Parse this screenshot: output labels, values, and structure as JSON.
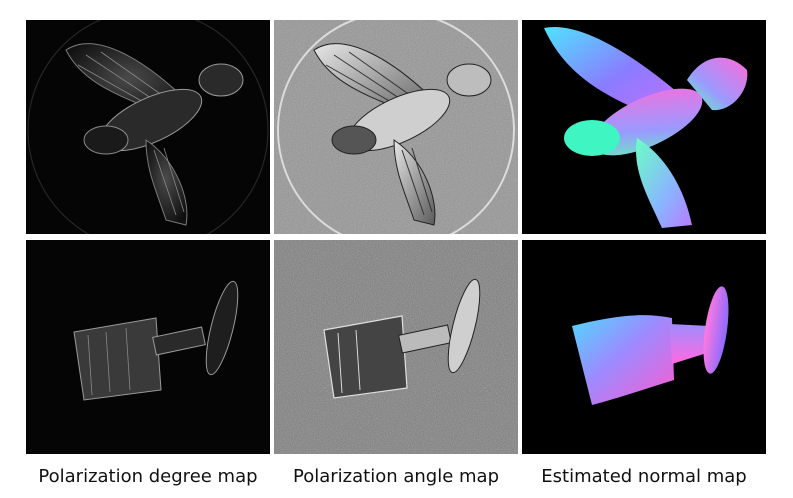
{
  "figure": {
    "columns": [
      {
        "caption": "Polarization degree map"
      },
      {
        "caption": "Polarization angle map"
      },
      {
        "caption": "Estimated normal map"
      }
    ],
    "rows": [
      {
        "object": "bird"
      },
      {
        "object": "goblet"
      }
    ]
  }
}
